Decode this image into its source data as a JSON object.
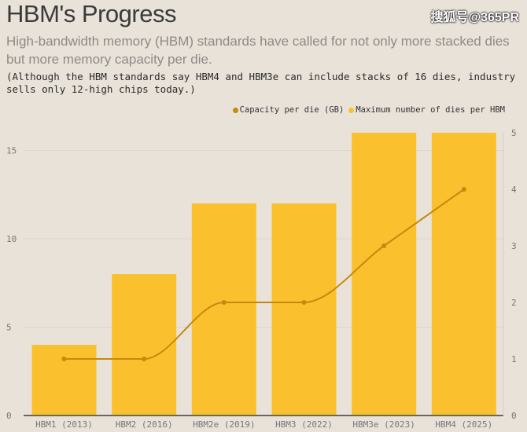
{
  "title": "HBM's Progress",
  "watermark": "搜狐号@365PR",
  "subtitle": "High-bandwidth memory (HBM) standards have called for not only more stacked dies but more memory capacity per die.",
  "note": "(Although the HBM standards say HBM4 and HBM3e can include stacks of 16 dies, industry sells only 12-high chips today.)",
  "legend": [
    {
      "label": "Capacity per die (GB)",
      "color": "#c48a0e"
    },
    {
      "label": "Maximum number of dies per HBM",
      "color": "#fbc02d"
    }
  ],
  "chart_data": {
    "type": "bar+line",
    "categories": [
      "HBM1 (2013)",
      "HBM2 (2016)",
      "HBM2e (2019)",
      "HBM3 (2022)",
      "HBM3e (2023)",
      "HBM4 (2025)"
    ],
    "series": [
      {
        "name": "Maximum number of dies per HBM",
        "type": "bar",
        "axis": "left",
        "color": "#fbc02d",
        "values": [
          4,
          8,
          12,
          12,
          16,
          16
        ]
      },
      {
        "name": "Capacity per die (GB)",
        "type": "line",
        "axis": "right",
        "color": "#c48a0e",
        "values": [
          1,
          1,
          2,
          2,
          3,
          4
        ]
      }
    ],
    "left_axis": {
      "ylim": [
        0,
        16
      ],
      "ticks": [
        0,
        5,
        10,
        15
      ]
    },
    "right_axis": {
      "ylim": [
        0,
        5
      ],
      "ticks": [
        0,
        1,
        2,
        3,
        4,
        5
      ]
    },
    "grid": true,
    "legend_position": "top-right"
  }
}
